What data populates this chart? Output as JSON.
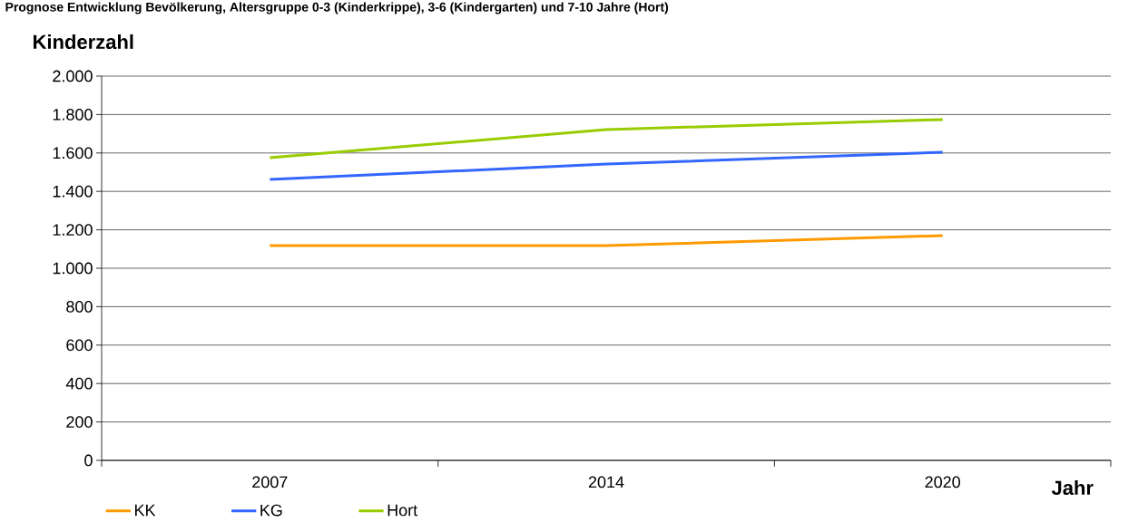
{
  "chart_data": {
    "type": "line",
    "title": "Prognose Entwicklung Bevölkerung, Altersgruppe 0-3 (Kinderkrippe), 3-6 (Kindergarten) und 7-10 Jahre (Hort)",
    "ylabel": "Kinderzahl",
    "xlabel": "Jahr",
    "categories": [
      "2007",
      "2014",
      "2020"
    ],
    "series": [
      {
        "name": "KK",
        "color": "#ff9900",
        "values": [
          1118,
          1118,
          1170
        ]
      },
      {
        "name": "KG",
        "color": "#3366ff",
        "values": [
          1462,
          1542,
          1604
        ]
      },
      {
        "name": "Hort",
        "color": "#99cc00",
        "values": [
          1575,
          1722,
          1774
        ]
      }
    ],
    "ylim": [
      0,
      2000
    ],
    "yticks": [
      {
        "value": 0,
        "label": "0"
      },
      {
        "value": 200,
        "label": "200"
      },
      {
        "value": 400,
        "label": "400"
      },
      {
        "value": 600,
        "label": "600"
      },
      {
        "value": 800,
        "label": "800"
      },
      {
        "value": 1000,
        "label": "1.000"
      },
      {
        "value": 1200,
        "label": "1.200"
      },
      {
        "value": 1400,
        "label": "1.400"
      },
      {
        "value": 1600,
        "label": "1.600"
      },
      {
        "value": 1800,
        "label": "1.800"
      },
      {
        "value": 2000,
        "label": "2.000"
      }
    ],
    "grid": "y",
    "legend": "bottom",
    "marker": "none",
    "line_style": "solid"
  }
}
